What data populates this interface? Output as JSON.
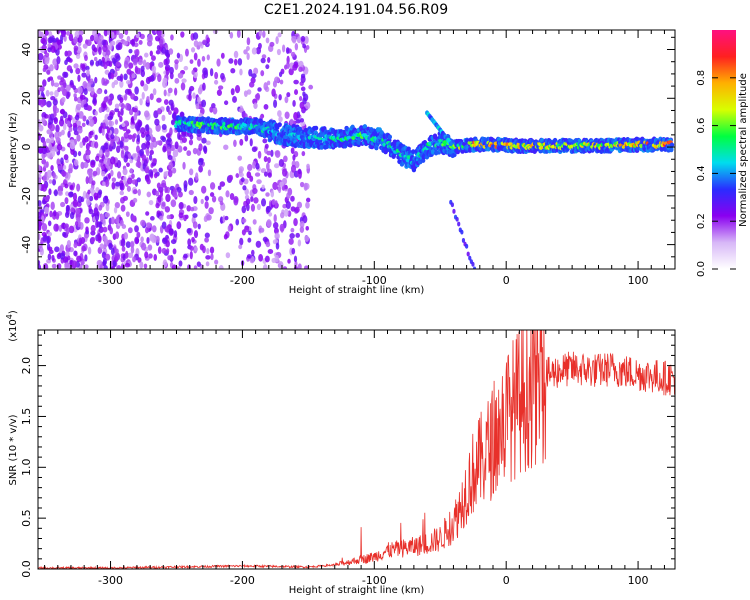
{
  "title": "C2E1.2024.191.04.56.R09",
  "chart_data": [
    {
      "type": "heatmap",
      "xlabel": "Height of straight line (km)",
      "ylabel": "Frequency (Hz)",
      "xlim": [
        -355,
        128
      ],
      "ylim": [
        -50,
        48
      ],
      "xticks": [
        -300,
        -200,
        -100,
        0,
        100
      ],
      "yticks": [
        -40,
        -20,
        0,
        20,
        40
      ],
      "colorbar": {
        "label": "Normalized spectral amplitude",
        "range": [
          0.0,
          1.0
        ],
        "ticks": [
          "0.0",
          "0.2",
          "0.4",
          "0.6",
          "0.8"
        ],
        "colors": [
          "#ffffff",
          "#d7b7f7",
          "#8a00f0",
          "#2a2cff",
          "#00ddee",
          "#00ff40",
          "#d8ff00",
          "#ffb000",
          "#ff2020",
          "#ff1080"
        ]
      },
      "ridge": [
        {
          "x": -250,
          "y": 9.5,
          "amp": 0.5
        },
        {
          "x": -230,
          "y": 9,
          "amp": 0.6
        },
        {
          "x": -210,
          "y": 8.5,
          "amp": 0.55
        },
        {
          "x": -190,
          "y": 8.5,
          "amp": 0.5
        },
        {
          "x": -170,
          "y": 5,
          "amp": 0.4
        },
        {
          "x": -150,
          "y": 4,
          "amp": 0.45
        },
        {
          "x": -130,
          "y": 3.5,
          "amp": 0.5
        },
        {
          "x": -110,
          "y": 5,
          "amp": 0.55
        },
        {
          "x": -95,
          "y": 3,
          "amp": 0.5
        },
        {
          "x": -80,
          "y": -3,
          "amp": 0.5
        },
        {
          "x": -70,
          "y": -6,
          "amp": 0.45
        },
        {
          "x": -60,
          "y": 0,
          "amp": 0.5
        },
        {
          "x": -50,
          "y": 2,
          "amp": 0.55
        },
        {
          "x": -40,
          "y": 0,
          "amp": 0.6
        },
        {
          "x": -25,
          "y": 1,
          "amp": 0.8
        },
        {
          "x": -10,
          "y": 1,
          "amp": 0.85
        },
        {
          "x": 10,
          "y": 0.5,
          "amp": 0.75
        },
        {
          "x": 40,
          "y": 0.5,
          "amp": 0.7
        },
        {
          "x": 70,
          "y": 0.5,
          "amp": 0.7
        },
        {
          "x": 100,
          "y": 1,
          "amp": 0.8
        },
        {
          "x": 125,
          "y": 1,
          "amp": 0.85
        }
      ]
    },
    {
      "type": "line",
      "xlabel": "Height of straight line (km)",
      "ylabel": "SNR (10 * v/v)",
      "yscale_label": "(x10",
      "yscale_exp": "4",
      "yscale_close": ")",
      "xlim": [
        -355,
        128
      ],
      "ylim": [
        0,
        2.35
      ],
      "xticks": [
        -300,
        -200,
        -100,
        0,
        100
      ],
      "yticks": [
        "0.0",
        "0.5",
        "1.0",
        "1.5",
        "2.0"
      ],
      "color": "#e8302a",
      "series": [
        {
          "x": [
            -355,
            -300,
            -250,
            -200,
            -150,
            -130,
            -115,
            -100,
            -90,
            -80,
            -70,
            -60,
            -50,
            -40,
            -35,
            -30,
            -25,
            -20,
            -15,
            -10,
            -5,
            0,
            10,
            20,
            30,
            40,
            50,
            60,
            70,
            80,
            90,
            100,
            110,
            120,
            128
          ],
          "y": [
            0.01,
            0.01,
            0.02,
            0.03,
            0.02,
            0.04,
            0.08,
            0.12,
            0.18,
            0.2,
            0.22,
            0.25,
            0.3,
            0.45,
            0.6,
            0.8,
            0.95,
            1.05,
            1.15,
            1.25,
            1.38,
            1.5,
            1.65,
            1.8,
            1.9,
            1.95,
            1.97,
            1.96,
            1.95,
            1.97,
            1.94,
            1.92,
            1.9,
            1.88,
            1.88
          ]
        }
      ]
    }
  ]
}
